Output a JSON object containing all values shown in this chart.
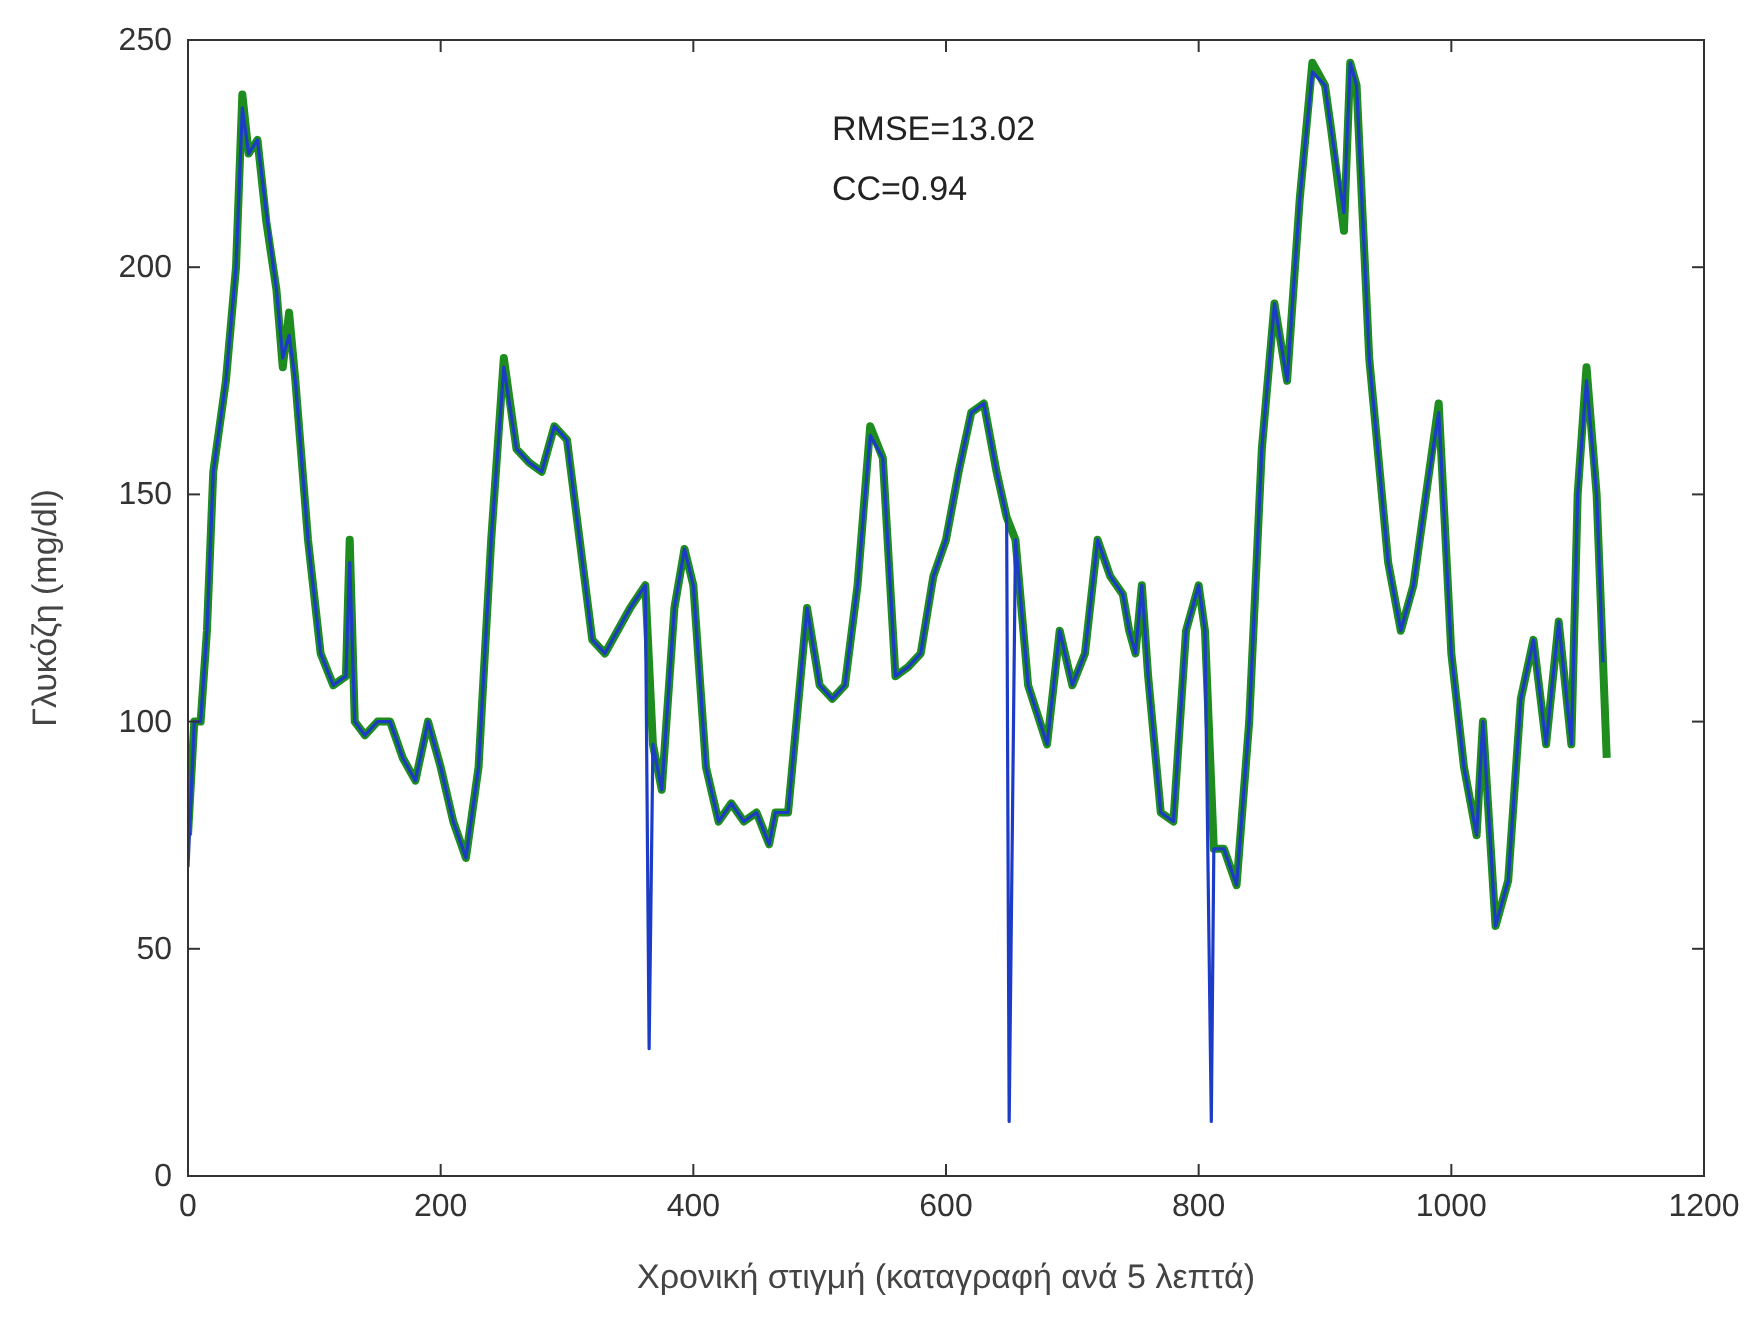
{
  "chart_data": {
    "type": "line",
    "xlabel": "Χρονική στιγμή (καταγραφή ανά 5 λεπτά)",
    "ylabel": "Γλυκόζη (mg/dl)",
    "annotations": [
      "RMSE=13.02",
      "CC=0.94"
    ],
    "xlim": [
      0,
      1200
    ],
    "xticks": [
      0,
      200,
      400,
      600,
      800,
      1000,
      1200
    ],
    "ylim": [
      0,
      250
    ],
    "yticks": [
      0,
      50,
      100,
      150,
      200,
      250
    ],
    "grid": false,
    "marker": "none",
    "line_style": "solid",
    "series": [
      {
        "color": "#1e8c1e",
        "x": [
          0,
          5,
          10,
          15,
          20,
          30,
          38,
          43,
          48,
          55,
          62,
          70,
          75,
          80,
          85,
          95,
          105,
          115,
          125,
          128,
          132,
          140,
          150,
          160,
          170,
          180,
          190,
          200,
          210,
          220,
          230,
          240,
          250,
          260,
          270,
          280,
          290,
          300,
          310,
          320,
          330,
          340,
          350,
          362,
          368,
          375,
          385,
          393,
          400,
          410,
          420,
          430,
          440,
          450,
          460,
          465,
          475,
          480,
          490,
          500,
          510,
          520,
          530,
          540,
          550,
          560,
          570,
          580,
          590,
          600,
          610,
          620,
          630,
          640,
          648,
          655,
          665,
          680,
          690,
          700,
          710,
          720,
          730,
          740,
          745,
          750,
          755,
          760,
          770,
          780,
          790,
          800,
          805,
          812,
          820,
          830,
          840,
          850,
          860,
          870,
          880,
          890,
          900,
          905,
          915,
          920,
          925,
          935,
          950,
          960,
          970,
          980,
          990,
          1000,
          1010,
          1020,
          1025,
          1035,
          1045,
          1055,
          1065,
          1075,
          1085,
          1095,
          1100,
          1107,
          1115,
          1123
        ],
        "values": [
          75,
          100,
          100,
          120,
          155,
          175,
          200,
          238,
          225,
          228,
          210,
          195,
          178,
          190,
          175,
          140,
          115,
          108,
          110,
          140,
          100,
          97,
          100,
          100,
          92,
          87,
          100,
          90,
          78,
          70,
          90,
          140,
          180,
          160,
          157,
          155,
          165,
          162,
          140,
          118,
          115,
          120,
          125,
          130,
          95,
          85,
          125,
          138,
          130,
          90,
          78,
          82,
          78,
          80,
          73,
          80,
          80,
          95,
          125,
          108,
          105,
          108,
          130,
          165,
          158,
          110,
          112,
          115,
          132,
          140,
          155,
          168,
          170,
          155,
          145,
          140,
          108,
          95,
          120,
          108,
          115,
          140,
          132,
          128,
          120,
          115,
          130,
          110,
          80,
          78,
          120,
          130,
          120,
          72,
          72,
          64,
          100,
          160,
          192,
          175,
          215,
          245,
          240,
          230,
          208,
          245,
          240,
          180,
          135,
          120,
          130,
          150,
          170,
          115,
          90,
          75,
          100,
          55,
          65,
          105,
          118,
          95,
          122,
          95,
          150,
          178,
          150,
          92
        ]
      },
      {
        "color": "#1c3cc8",
        "x": [
          0,
          5,
          10,
          15,
          20,
          30,
          38,
          43,
          48,
          55,
          62,
          70,
          75,
          80,
          85,
          95,
          105,
          115,
          125,
          128,
          132,
          140,
          150,
          160,
          170,
          180,
          190,
          200,
          210,
          220,
          230,
          240,
          250,
          260,
          270,
          280,
          290,
          300,
          310,
          320,
          330,
          340,
          350,
          362,
          365,
          368,
          375,
          385,
          393,
          400,
          410,
          420,
          430,
          440,
          450,
          460,
          465,
          475,
          480,
          490,
          500,
          510,
          520,
          530,
          540,
          550,
          560,
          570,
          580,
          590,
          600,
          610,
          620,
          630,
          640,
          648,
          650,
          655,
          665,
          680,
          690,
          700,
          710,
          720,
          730,
          740,
          745,
          750,
          755,
          760,
          770,
          780,
          790,
          800,
          805,
          810,
          812,
          820,
          830,
          840,
          850,
          860,
          870,
          880,
          890,
          900,
          905,
          915,
          920,
          925,
          935,
          950,
          960,
          970,
          980,
          990,
          1000,
          1010,
          1020,
          1025,
          1035,
          1045,
          1055,
          1065,
          1075,
          1085,
          1095,
          1100,
          1107,
          1115,
          1120
        ],
        "values": [
          68,
          100,
          100,
          120,
          155,
          175,
          200,
          235,
          225,
          228,
          212,
          195,
          180,
          185,
          175,
          140,
          115,
          108,
          110,
          135,
          100,
          97,
          100,
          100,
          92,
          87,
          100,
          90,
          78,
          70,
          90,
          140,
          178,
          160,
          157,
          155,
          165,
          162,
          140,
          118,
          115,
          120,
          125,
          130,
          28,
          95,
          85,
          125,
          138,
          130,
          90,
          78,
          82,
          78,
          80,
          73,
          80,
          80,
          95,
          125,
          108,
          105,
          108,
          130,
          163,
          158,
          110,
          112,
          115,
          132,
          140,
          155,
          168,
          170,
          155,
          145,
          12,
          140,
          108,
          95,
          120,
          108,
          115,
          140,
          132,
          128,
          120,
          115,
          130,
          110,
          80,
          78,
          120,
          130,
          120,
          12,
          72,
          72,
          64,
          100,
          160,
          192,
          175,
          215,
          243,
          240,
          230,
          212,
          245,
          240,
          180,
          135,
          120,
          130,
          150,
          168,
          115,
          90,
          75,
          100,
          55,
          65,
          105,
          118,
          95,
          122,
          95,
          150,
          175,
          150,
          113
        ]
      }
    ]
  }
}
